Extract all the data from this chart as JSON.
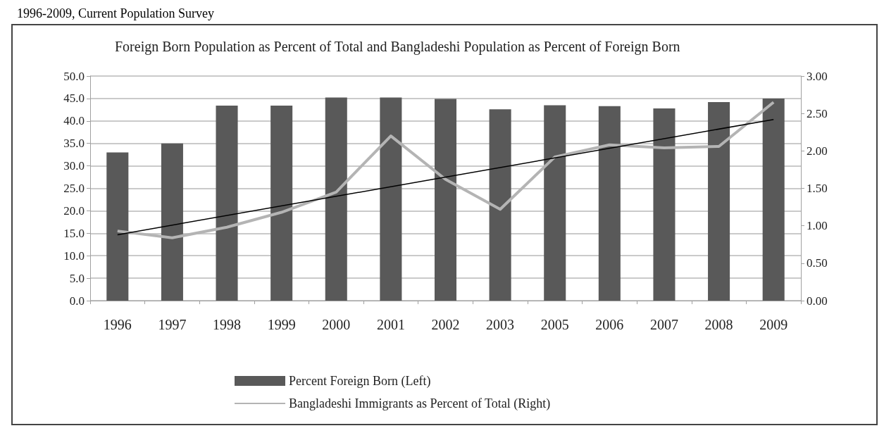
{
  "chart_data": {
    "type": "bar",
    "title": "Foreign Born Population as Percent of Total and Bangladeshi Population as Percent of Foreign Born",
    "annotations": [
      "1996-2009, Current Population Survey"
    ],
    "categories": [
      "1996",
      "1997",
      "1998",
      "1999",
      "2000",
      "2001",
      "2002",
      "2003",
      "2005",
      "2006",
      "2007",
      "2008",
      "2009"
    ],
    "series": [
      {
        "name": "Percent Foreign Born (Left)",
        "color": "#595959",
        "values": [
          33.0,
          35.0,
          43.4,
          43.4,
          45.2,
          45.2,
          44.9,
          42.6,
          43.5,
          43.3,
          42.8,
          44.2,
          45.0
        ]
      },
      {
        "name": "Bangladeshi Immigrants as Percent of Total (Right)",
        "type": "line",
        "axis": "y2",
        "color": "#b4b4b4",
        "values": [
          0.93,
          0.84,
          0.98,
          1.18,
          1.45,
          2.2,
          1.62,
          1.22,
          1.92,
          2.08,
          2.04,
          2.06,
          2.65
        ]
      },
      {
        "type": "line",
        "axis": "y2",
        "color": "#000000",
        "values": [
          0.88,
          null,
          null,
          null,
          null,
          null,
          null,
          null,
          null,
          null,
          null,
          null,
          2.42
        ]
      }
    ],
    "ylim": [
      0,
      50
    ],
    "yticks": [
      {
        "value": 0,
        "label": "0.0"
      },
      {
        "value": 5,
        "label": "5.0"
      },
      {
        "value": 10,
        "label": "10.0"
      },
      {
        "value": 15,
        "label": "15.0"
      },
      {
        "value": 20,
        "label": "20.0"
      },
      {
        "value": 25,
        "label": "25.0"
      },
      {
        "value": 30,
        "label": "30.0"
      },
      {
        "value": 35,
        "label": "35.0"
      },
      {
        "value": 40,
        "label": "40.0"
      },
      {
        "value": 45,
        "label": "45.0"
      },
      {
        "value": 50,
        "label": "50.0"
      }
    ],
    "y2lim": [
      0,
      3
    ],
    "y2ticks": [
      {
        "value": 0,
        "label": "0.00"
      },
      {
        "value": 0.5,
        "label": "0.50"
      },
      {
        "value": 1,
        "label": "1.00"
      },
      {
        "value": 1.5,
        "label": "1.50"
      },
      {
        "value": 2,
        "label": "2.00"
      },
      {
        "value": 2.5,
        "label": "2.50"
      },
      {
        "value": 3,
        "label": "3.00"
      }
    ],
    "grid": "y",
    "legend": "bottom",
    "marker": "none"
  }
}
